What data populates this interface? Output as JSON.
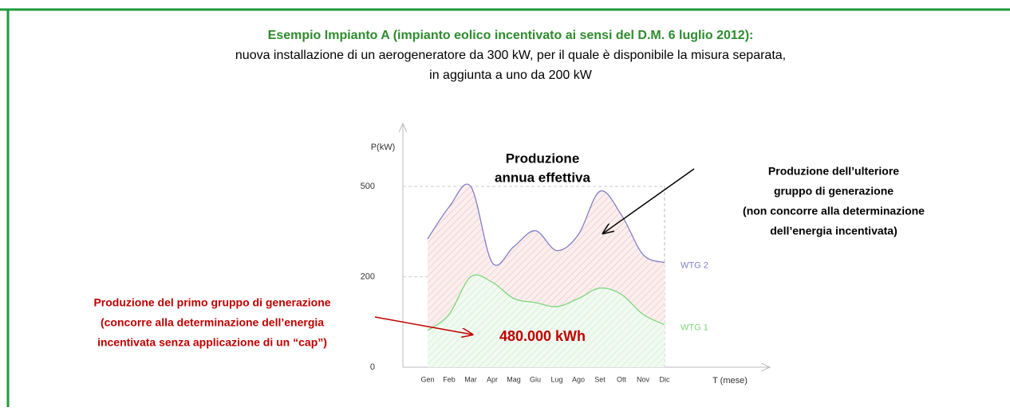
{
  "header": {
    "title": "Esempio Impianto A (impianto eolico incentivato ai sensi del D.M. 6 luglio 2012):",
    "lines": [
      "nuova installazione di un aerogeneratore da 300 kW, per il quale è disponibile la misura separata,",
      "in aggiunta a uno da 200 kW"
    ]
  },
  "chart_data": {
    "type": "line",
    "title": [
      "Produzione",
      "annua effettiva"
    ],
    "y_label": "P(kW)",
    "x_label": "T (mese)",
    "categories": [
      "Gen",
      "Feb",
      "Mar",
      "Apr",
      "Mag",
      "Giu",
      "Lug",
      "Ago",
      "Set",
      "Ott",
      "Nov",
      "Dic"
    ],
    "series": [
      {
        "name": "WTG 1",
        "color": "#7ed67e",
        "values": [
          81,
          117,
          200,
          188,
          152,
          143,
          134,
          152,
          175,
          161,
          117,
          94
        ]
      },
      {
        "name": "WTG 2",
        "color": "#7f7fc8",
        "values": [
          326,
          432,
          500,
          247,
          300,
          353,
          287,
          340,
          484,
          405,
          274,
          247
        ]
      }
    ],
    "ylim": [
      0,
      500
    ],
    "yticks": [
      0,
      200,
      500
    ],
    "grid": true,
    "annotations": {
      "value_label": "480.000 kWh",
      "right": [
        "Produzione dell’ulteriore",
        "gruppo di generazione",
        "(non concorre alla determinazione",
        "dell’energia incentivata)"
      ],
      "left": [
        "Produzione del primo gruppo di generazione",
        "(concorre alla determinazione dell’energia",
        "incentivata senza applicazione di un “cap”)"
      ]
    }
  }
}
